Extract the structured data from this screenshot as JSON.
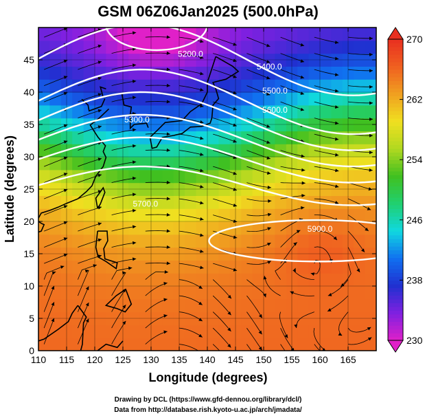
{
  "chart_data": {
    "type": "heatmap",
    "title": "GSM 06Z06Jan2025 (500.0hPa)",
    "xlabel": "Longitude (degrees)",
    "ylabel": "Latitude  (degrees)",
    "xlim": [
      110,
      170
    ],
    "ylim": [
      0,
      50
    ],
    "x_ticks": [
      "110",
      "115",
      "120",
      "125",
      "130",
      "135",
      "140",
      "145",
      "150",
      "155",
      "160",
      "165"
    ],
    "y_ticks": [
      "0",
      "5",
      "10",
      "15",
      "20",
      "25",
      "30",
      "35",
      "40",
      "45"
    ],
    "grid": true,
    "colorbar": {
      "min": 230,
      "max": 270,
      "ticks": [
        "230",
        "238",
        "246",
        "254",
        "262",
        "270"
      ],
      "colors": [
        "#e020c8",
        "#8020e0",
        "#2030d0",
        "#1070f0",
        "#10d8e0",
        "#20d070",
        "#40c020",
        "#b0d820",
        "#f0e020",
        "#f0a020",
        "#f06020",
        "#e83020"
      ]
    },
    "contours": [
      {
        "label": "5200.0",
        "lon": 137,
        "lat": 45.5
      },
      {
        "label": "5300.0",
        "lon": 127.5,
        "lat": 35.3
      },
      {
        "label": "5400.0",
        "lon": 151,
        "lat": 43.5
      },
      {
        "label": "5500.0",
        "lon": 152,
        "lat": 39.8
      },
      {
        "label": "5600.0",
        "lon": 152,
        "lat": 36.8
      },
      {
        "label": "5700.0",
        "lon": 129,
        "lat": 22.3
      },
      {
        "label": "5900.0",
        "lon": 160,
        "lat": 18.4
      }
    ],
    "temperature_field_description_values": {
      "high_lat_low": 232,
      "tropics": 266
    }
  },
  "credits": {
    "line1": "Drawing by DCL (https://www.gfd-dennou.org/library/dcl/)",
    "line2": "Data from http://database.rish.kyoto-u.ac.jp/arch/jmadata/"
  }
}
